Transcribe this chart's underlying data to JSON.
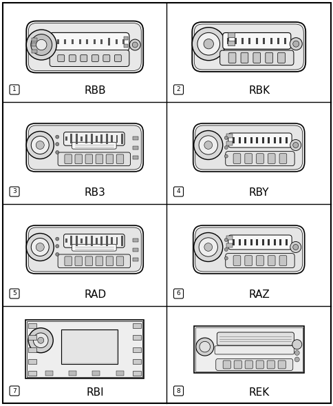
{
  "fig_width": 4.85,
  "fig_height": 5.89,
  "dpi": 100,
  "bg": "#ffffff",
  "fg": "#000000",
  "grid_lw": 1.0,
  "cells": [
    {
      "num": "1",
      "label": "RBB",
      "row": 0,
      "col": 0,
      "style": "typeA"
    },
    {
      "num": "2",
      "label": "RBK",
      "row": 0,
      "col": 1,
      "style": "typeB"
    },
    {
      "num": "3",
      "label": "RB3",
      "row": 1,
      "col": 0,
      "style": "typeC"
    },
    {
      "num": "4",
      "label": "RBY",
      "row": 1,
      "col": 1,
      "style": "typeD"
    },
    {
      "num": "5",
      "label": "RAD",
      "row": 2,
      "col": 0,
      "style": "typeC"
    },
    {
      "num": "6",
      "label": "RAZ",
      "row": 2,
      "col": 1,
      "style": "typeD"
    },
    {
      "num": "7",
      "label": "RBI",
      "row": 3,
      "col": 0,
      "style": "typeE"
    },
    {
      "num": "8",
      "label": "REK",
      "row": 3,
      "col": 1,
      "style": "typeF"
    }
  ]
}
